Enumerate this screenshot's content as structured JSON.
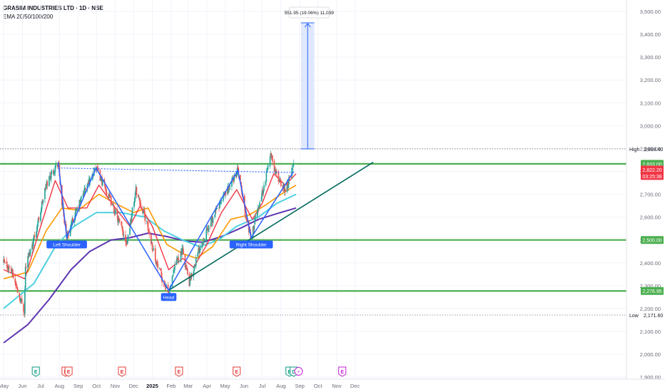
{
  "header": {
    "title": "GRASIM INDUSTRIES LTD · 1D · NSE",
    "indicator": "EMA 20/50/100/200"
  },
  "colors": {
    "candle_up": "#26a69a",
    "candle_down": "#ef5350",
    "ema20": "#f23645",
    "ema50": "#ff9800",
    "ema100": "#4dd0e1",
    "ema200": "#5e35b1",
    "level_line": "#4caf50",
    "pattern_line": "#2962ff",
    "trendline": "#00695c",
    "target_fill": "#dbe6fd",
    "label_green": "#4caf50",
    "label_red": "#f23645",
    "label_blue": "#2962ff",
    "grid": "#f0f3fa",
    "text": "#131722",
    "axis_text": "#6a6d78",
    "earnings_red": "#e53935",
    "earnings_teal": "#089981",
    "earnings_pink": "#c21fd8"
  },
  "chart_data": {
    "type": "candlestick",
    "title": "GRASIM INDUSTRIES LTD · 1D · NSE",
    "indicators": [
      "EMA 20",
      "EMA 50",
      "EMA 100",
      "EMA 200"
    ],
    "x_axis_labels": [
      "May",
      "Jun",
      "Jul",
      "Aug",
      "Sep",
      "Oct",
      "Nov",
      "Dec",
      "2025",
      "Feb",
      "Mar",
      "Apr",
      "May",
      "Jun",
      "Jul",
      "Aug",
      "Sep",
      "Oct",
      "Nov",
      "Dec"
    ],
    "x_axis_bold": "2025",
    "y_axis": {
      "ylim": [
        1900,
        3500
      ],
      "ticks": [
        "3,500.00",
        "3,400.00",
        "3,300.00",
        "3,200.00",
        "3,100.00",
        "3,000.00",
        "2,900.00",
        "2,800.00",
        "2,700.00",
        "2,600.00",
        "2,500.00",
        "2,400.00",
        "2,300.00",
        "2,200.00",
        "2,100.00",
        "2,000.00",
        "1,900.00"
      ],
      "tick_values": [
        3500,
        3400,
        3300,
        3200,
        3100,
        3000,
        2900,
        2800,
        2700,
        2600,
        2500,
        2400,
        2300,
        2200,
        2100,
        2000,
        1900
      ]
    },
    "price_path": [
      {
        "t": "2024-05-01",
        "price": 2400
      },
      {
        "t": "2024-05-13",
        "price": 2370
      },
      {
        "t": "2024-06-04",
        "price": 2190
      },
      {
        "t": "2024-06-06",
        "price": 2380
      },
      {
        "t": "2024-06-25",
        "price": 2560
      },
      {
        "t": "2024-07-10",
        "price": 2740
      },
      {
        "t": "2024-07-20",
        "price": 2800
      },
      {
        "t": "2024-07-30",
        "price": 2840
      },
      {
        "t": "2024-08-05",
        "price": 2660
      },
      {
        "t": "2024-08-13",
        "price": 2510
      },
      {
        "t": "2024-09-10",
        "price": 2710
      },
      {
        "t": "2024-09-30",
        "price": 2815
      },
      {
        "t": "2024-10-20",
        "price": 2700
      },
      {
        "t": "2024-11-20",
        "price": 2490
      },
      {
        "t": "2024-12-05",
        "price": 2720
      },
      {
        "t": "2024-12-20",
        "price": 2600
      },
      {
        "t": "2025-01-10",
        "price": 2380
      },
      {
        "t": "2025-01-28",
        "price": 2260
      },
      {
        "t": "2025-02-10",
        "price": 2410
      },
      {
        "t": "2025-02-20",
        "price": 2450
      },
      {
        "t": "2025-03-03",
        "price": 2310
      },
      {
        "t": "2025-03-20",
        "price": 2470
      },
      {
        "t": "2025-04-15",
        "price": 2620
      },
      {
        "t": "2025-05-07",
        "price": 2730
      },
      {
        "t": "2025-05-22",
        "price": 2805
      },
      {
        "t": "2025-06-05",
        "price": 2590
      },
      {
        "t": "2025-06-13",
        "price": 2510
      },
      {
        "t": "2025-06-25",
        "price": 2650
      },
      {
        "t": "2025-07-05",
        "price": 2740
      },
      {
        "t": "2025-07-14",
        "price": 2880
      },
      {
        "t": "2025-07-25",
        "price": 2780
      },
      {
        "t": "2025-08-08",
        "price": 2720
      },
      {
        "t": "2025-08-22",
        "price": 2822.2
      }
    ],
    "ema20": [
      [
        "2024-05-01",
        2370
      ],
      [
        "2024-06-05",
        2330
      ],
      [
        "2024-07-01",
        2560
      ],
      [
        "2024-07-25",
        2760
      ],
      [
        "2024-08-15",
        2640
      ],
      [
        "2024-09-15",
        2640
      ],
      [
        "2024-10-05",
        2740
      ],
      [
        "2024-11-01",
        2640
      ],
      [
        "2024-11-25",
        2560
      ],
      [
        "2024-12-12",
        2650
      ],
      [
        "2025-01-01",
        2560
      ],
      [
        "2025-01-28",
        2370
      ],
      [
        "2025-02-20",
        2420
      ],
      [
        "2025-03-10",
        2380
      ],
      [
        "2025-04-01",
        2480
      ],
      [
        "2025-04-25",
        2620
      ],
      [
        "2025-05-20",
        2720
      ],
      [
        "2025-06-15",
        2590
      ],
      [
        "2025-07-01",
        2660
      ],
      [
        "2025-07-20",
        2790
      ],
      [
        "2025-08-08",
        2740
      ],
      [
        "2025-08-26",
        2790
      ]
    ],
    "ema50": [
      [
        "2024-05-01",
        2330
      ],
      [
        "2024-06-10",
        2360
      ],
      [
        "2024-07-10",
        2540
      ],
      [
        "2024-08-05",
        2640
      ],
      [
        "2024-09-01",
        2630
      ],
      [
        "2024-10-05",
        2700
      ],
      [
        "2024-11-01",
        2660
      ],
      [
        "2024-12-01",
        2620
      ],
      [
        "2024-12-25",
        2640
      ],
      [
        "2025-01-25",
        2480
      ],
      [
        "2025-02-20",
        2440
      ],
      [
        "2025-03-15",
        2420
      ],
      [
        "2025-04-10",
        2470
      ],
      [
        "2025-05-10",
        2590
      ],
      [
        "2025-06-10",
        2610
      ],
      [
        "2025-07-05",
        2650
      ],
      [
        "2025-08-01",
        2700
      ],
      [
        "2025-08-26",
        2740
      ]
    ],
    "ema100": [
      [
        "2024-05-01",
        2200
      ],
      [
        "2024-06-20",
        2310
      ],
      [
        "2024-07-25",
        2470
      ],
      [
        "2024-08-25",
        2560
      ],
      [
        "2024-10-01",
        2620
      ],
      [
        "2024-11-10",
        2620
      ],
      [
        "2024-12-20",
        2600
      ],
      [
        "2025-01-20",
        2540
      ],
      [
        "2025-02-20",
        2500
      ],
      [
        "2025-03-20",
        2470
      ],
      [
        "2025-04-20",
        2500
      ],
      [
        "2025-05-20",
        2560
      ],
      [
        "2025-06-25",
        2600
      ],
      [
        "2025-07-25",
        2660
      ],
      [
        "2025-08-26",
        2700
      ]
    ],
    "ema200": [
      [
        "2024-05-01",
        2050
      ],
      [
        "2024-06-10",
        2130
      ],
      [
        "2024-07-15",
        2240
      ],
      [
        "2024-08-20",
        2370
      ],
      [
        "2024-09-20",
        2450
      ],
      [
        "2024-10-25",
        2500
      ],
      [
        "2024-11-25",
        2510
      ],
      [
        "2024-12-25",
        2530
      ],
      [
        "2025-01-25",
        2515
      ],
      [
        "2025-02-25",
        2495
      ],
      [
        "2025-03-25",
        2490
      ],
      [
        "2025-04-25",
        2515
      ],
      [
        "2025-05-25",
        2550
      ],
      [
        "2025-06-25",
        2590
      ],
      [
        "2025-07-25",
        2615
      ],
      [
        "2025-08-26",
        2640
      ]
    ],
    "horizontal_levels": [
      2833,
      2500,
      2276.95
    ],
    "dotted_levels": [
      {
        "price": 2898.4,
        "label": "High",
        "value_label": "2,898.40"
      },
      {
        "price": 2171.6,
        "label": "Low",
        "value_label": "2,171.60"
      }
    ],
    "price_labels": [
      {
        "price": 2833,
        "text": "2,833.00",
        "style": "green"
      },
      {
        "price": 2822.2,
        "text": "2,822.20",
        "sub": "03:25:38",
        "style": "red"
      },
      {
        "price": 2500,
        "text": "2,500.00",
        "style": "green"
      },
      {
        "price": 2276.95,
        "text": "2,276.95",
        "style": "green"
      }
    ],
    "pattern_points": [
      {
        "t": "2024-07-30",
        "price": 2840
      },
      {
        "t": "2024-08-13",
        "price": 2510,
        "label": "Left Shoulder"
      },
      {
        "t": "2024-09-30",
        "price": 2815
      },
      {
        "t": "2025-01-28",
        "price": 2280,
        "label": "Head"
      },
      {
        "t": "2025-05-22",
        "price": 2805
      },
      {
        "t": "2025-06-13",
        "price": 2510,
        "label": "Right Shoulder"
      },
      {
        "t": "2025-08-22",
        "price": 2800
      }
    ],
    "neckline": {
      "start": {
        "t": "2024-07-30",
        "price": 2815
      },
      "end": {
        "t": "2025-08-22",
        "price": 2795
      }
    },
    "trendline": {
      "start": {
        "t": "2025-01-28",
        "price": 2280
      },
      "end": {
        "t": "2025-12-31",
        "price": 2840
      }
    },
    "target_projection": {
      "start": {
        "t": "2025-09-03",
        "price": 2898.4
      },
      "end": {
        "t": "2025-09-25",
        "price": 3450
      },
      "label": "551.95 (19.06%) 11,039"
    },
    "event_markers": [
      {
        "t": "2024-06-23",
        "symbol": "E",
        "kind": "teal"
      },
      {
        "t": "2024-08-11",
        "symbol": "E",
        "kind": "red"
      },
      {
        "t": "2024-08-16",
        "symbol": "E",
        "kind": "red"
      },
      {
        "t": "2024-11-12",
        "symbol": "E",
        "kind": "red"
      },
      {
        "t": "2025-02-14",
        "symbol": "E",
        "kind": "red"
      },
      {
        "t": "2025-05-20",
        "symbol": "E",
        "kind": "red"
      },
      {
        "t": "2025-08-15",
        "symbol": "E",
        "kind": "teal"
      },
      {
        "t": "2025-08-22",
        "symbol": "D",
        "kind": "teal"
      },
      {
        "t": "2025-08-30",
        "symbol": "⚡",
        "kind": "pink"
      },
      {
        "t": "2025-11-10",
        "symbol": "E",
        "kind": "pink"
      }
    ]
  }
}
